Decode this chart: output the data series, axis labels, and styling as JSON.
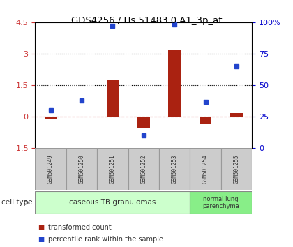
{
  "title": "GDS4256 / Hs.51483.0.A1_3p_at",
  "samples": [
    "GSM501249",
    "GSM501250",
    "GSM501251",
    "GSM501252",
    "GSM501253",
    "GSM501254",
    "GSM501255"
  ],
  "transformed_counts": [
    -0.1,
    -0.04,
    1.75,
    -0.55,
    3.2,
    -0.35,
    0.18
  ],
  "percentile_ranks": [
    30,
    38,
    97,
    10,
    98,
    37,
    65
  ],
  "bar_color": "#aa2211",
  "dot_color": "#2244cc",
  "left_ylim": [
    -1.5,
    4.5
  ],
  "right_ylim": [
    0,
    100
  ],
  "left_yticks": [
    -1.5,
    0,
    1.5,
    3,
    4.5
  ],
  "right_yticks": [
    0,
    25,
    50,
    75,
    100
  ],
  "right_yticklabels": [
    "0",
    "25",
    "50",
    "75",
    "100%"
  ],
  "hline_values": [
    0,
    1.5,
    3
  ],
  "hline_styles": [
    "--",
    ":",
    ":"
  ],
  "hline_colors": [
    "#cc3333",
    "#000000",
    "#000000"
  ],
  "cell_type_groups": [
    {
      "label": "caseous TB granulomas",
      "n_samples": 5,
      "color": "#ccffcc"
    },
    {
      "label": "normal lung\nparenchyma",
      "n_samples": 2,
      "color": "#88ee88"
    }
  ],
  "legend_items": [
    {
      "label": "transformed count",
      "color": "#aa2211"
    },
    {
      "label": "percentile rank within the sample",
      "color": "#2244cc"
    }
  ],
  "bg_color": "#ffffff",
  "plot_bg_color": "#ffffff",
  "tick_label_color_left": "#cc3333",
  "tick_label_color_right": "#0000cc",
  "sample_box_color": "#cccccc",
  "sample_box_edgecolor": "#999999",
  "cell_type_label": "cell type"
}
